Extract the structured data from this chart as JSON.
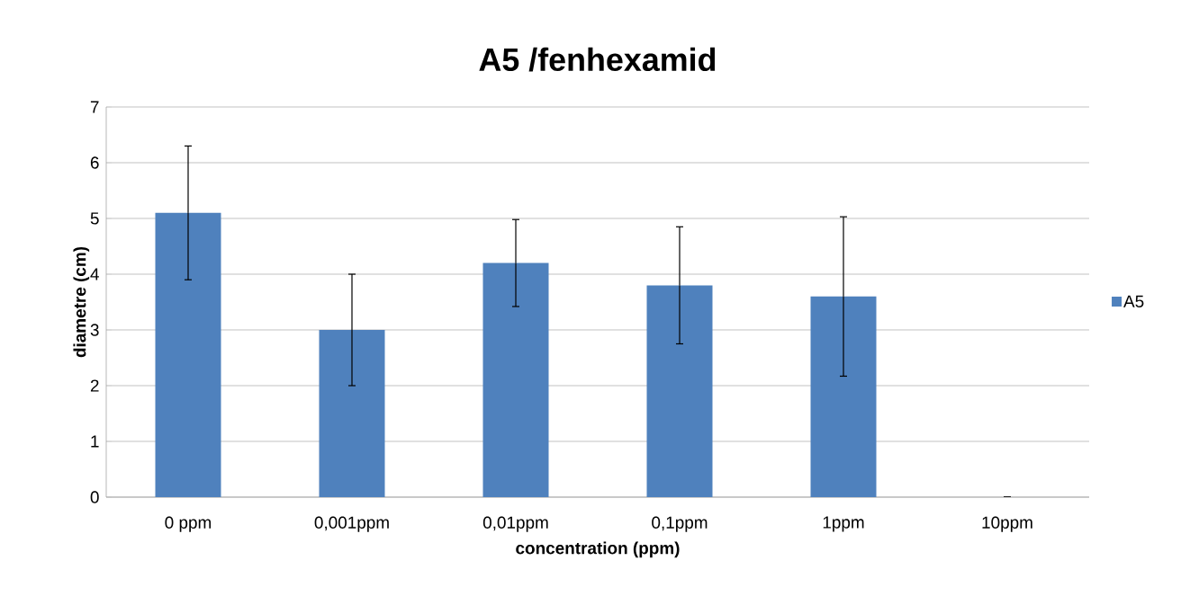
{
  "chart_data": {
    "type": "bar",
    "title": "A5 /fenhexamid",
    "xlabel": "concentration (ppm)",
    "ylabel": "diametre (cm)",
    "categories": [
      "0 ppm",
      "0,001ppm",
      "0,01ppm",
      "0,1ppm",
      "1ppm",
      "10ppm"
    ],
    "series": [
      {
        "name": "A5",
        "color": "#4f81bd",
        "values": [
          5.1,
          3.0,
          4.2,
          3.8,
          3.6,
          0
        ],
        "errors": [
          1.2,
          1.0,
          0.78,
          1.05,
          1.43,
          0
        ]
      }
    ],
    "ylim": [
      0,
      7
    ],
    "yticks": [
      0,
      1,
      2,
      3,
      4,
      5,
      6,
      7
    ],
    "grid": "y",
    "legend": "right"
  }
}
